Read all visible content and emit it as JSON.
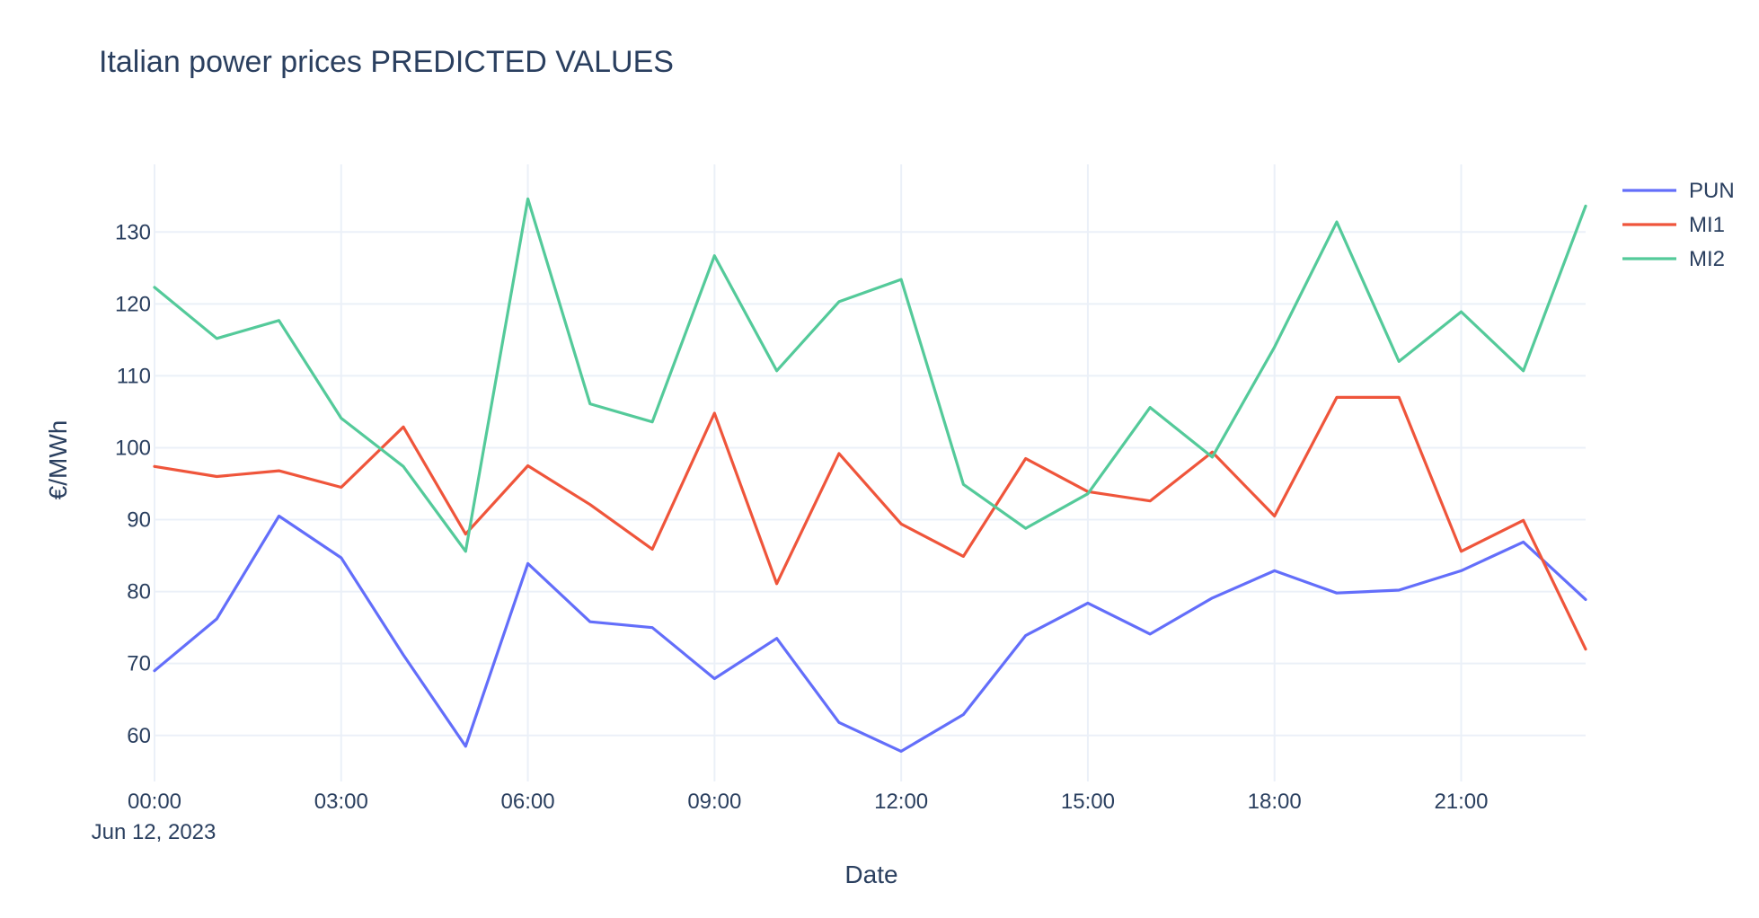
{
  "chart_data": {
    "type": "line",
    "title": "Italian power prices PREDICTED VALUES",
    "xlabel": "Date",
    "ylabel": "€/MWh",
    "x": [
      "00:00",
      "01:00",
      "02:00",
      "03:00",
      "04:00",
      "05:00",
      "06:00",
      "07:00",
      "08:00",
      "09:00",
      "10:00",
      "11:00",
      "12:00",
      "13:00",
      "14:00",
      "15:00",
      "16:00",
      "17:00",
      "18:00",
      "19:00",
      "20:00",
      "21:00",
      "22:00",
      "23:00"
    ],
    "x_date": "Jun 12, 2023",
    "x_tick_labels": [
      "00:00",
      "03:00",
      "06:00",
      "09:00",
      "12:00",
      "15:00",
      "18:00",
      "21:00"
    ],
    "x_tick_hours": [
      0,
      3,
      6,
      9,
      12,
      15,
      18,
      21
    ],
    "xlim": [
      0,
      23
    ],
    "y_ticks": [
      60,
      70,
      80,
      90,
      100,
      110,
      120,
      130
    ],
    "ylim": [
      53.6,
      139.4
    ],
    "grid": true,
    "legend_position": "top-right",
    "series": [
      {
        "name": "PUN",
        "color": "#636efa",
        "values": [
          69.0,
          76.2,
          90.5,
          84.7,
          71.2,
          58.5,
          83.9,
          75.8,
          75.0,
          67.9,
          73.5,
          61.8,
          57.8,
          62.9,
          73.9,
          78.4,
          74.1,
          79.1,
          82.9,
          79.8,
          80.2,
          82.9,
          86.9,
          78.9
        ]
      },
      {
        "name": "MI1",
        "color": "#ef553b",
        "values": [
          97.4,
          96.0,
          96.8,
          94.5,
          102.9,
          88.0,
          97.5,
          92.1,
          85.9,
          104.8,
          81.1,
          99.2,
          89.4,
          84.9,
          98.5,
          93.9,
          92.6,
          99.4,
          90.5,
          107.0,
          107.0,
          85.6,
          89.9,
          72.0
        ]
      },
      {
        "name": "MI2",
        "color": "#54ca9a",
        "values": [
          122.3,
          115.2,
          117.7,
          104.1,
          97.4,
          85.6,
          134.6,
          106.1,
          103.6,
          126.7,
          110.7,
          120.3,
          123.4,
          94.9,
          88.8,
          93.6,
          105.6,
          98.7,
          114.0,
          131.4,
          112.0,
          118.9,
          110.7,
          133.6
        ]
      }
    ]
  }
}
